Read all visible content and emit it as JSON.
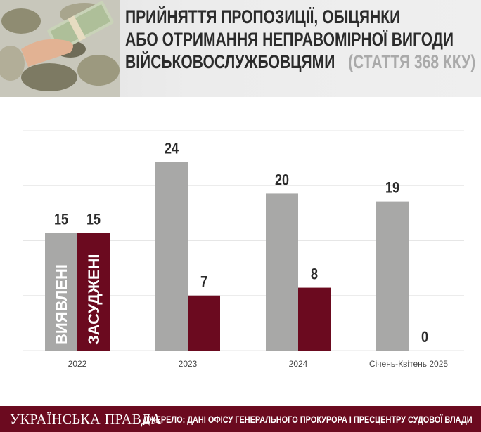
{
  "header": {
    "title_line1": "Прийняття пропозиції, обіцянки",
    "title_line2": "або отримання неправомірної вигоди",
    "title_line3": "військовослужбовцями",
    "title_sub": "(стаття 368 ККУ)"
  },
  "colors": {
    "detected": "#a8a8a7",
    "convicted": "#6b0a1f",
    "footer_bg": "#6b0a1f",
    "gridline": "#e6e6e6"
  },
  "chart_data": {
    "type": "bar",
    "categories": [
      "2022",
      "2023",
      "2024",
      "Січень-Квітень 2025"
    ],
    "series": [
      {
        "name": "Виявлені",
        "values": [
          15,
          24,
          20,
          19
        ]
      },
      {
        "name": "Засуджені",
        "values": [
          15,
          7,
          8,
          0
        ]
      }
    ],
    "ylim": [
      0,
      28
    ],
    "grid": true,
    "legend": "in-bar labels on first group"
  },
  "footer": {
    "brand": "УКРАЇНСЬКА ПРАВДА",
    "source": "ДЖЕРЕЛО: ДАНІ ОФІСУ ГЕНЕРАЛЬНОГО ПРОКУРОРА І ПРЕСЦЕНТРУ СУДОВОЇ ВЛАДИ"
  }
}
